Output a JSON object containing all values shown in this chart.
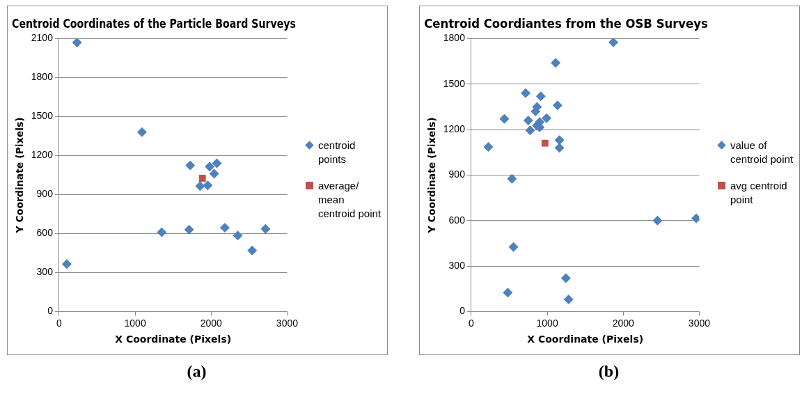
{
  "chart_data": [
    {
      "type": "scatter",
      "title": "Centroid Coordinates of the Particle Board Surveys",
      "xlabel": "X Coordinate (Pixels)",
      "ylabel": "Y Coordinate (Pixels)",
      "xlim": [
        0,
        3000
      ],
      "xticks": [
        0,
        1000,
        2000,
        3000
      ],
      "ylim": [
        0,
        2100
      ],
      "yticks": [
        0,
        300,
        600,
        900,
        1200,
        1500,
        1800,
        2100
      ],
      "grid": "y",
      "legend": "right",
      "annotations": [
        "(a)"
      ],
      "series": [
        {
          "name": "centroid points",
          "color": "#4f81bd",
          "marker": "diamond",
          "x": [
            235,
            1090,
            1725,
            1980,
            2075,
            2040,
            1855,
            1955,
            1350,
            1710,
            2180,
            2350,
            2540,
            2715,
            100
          ],
          "values": [
            2070,
            1380,
            1125,
            1115,
            1140,
            1060,
            965,
            970,
            610,
            630,
            645,
            585,
            470,
            635,
            365
          ]
        },
        {
          "name": "average/ mean centroid point",
          "color": "#c0504d",
          "marker": "square",
          "x": [
            1885
          ],
          "values": [
            1025
          ]
        }
      ]
    },
    {
      "type": "scatter",
      "title": "Centroid Coordiantes from the OSB Surveys",
      "xlabel": "X Coordinate (Pixels)",
      "ylabel": "Y Coordinate (Pixels)",
      "xlim": [
        0,
        3000
      ],
      "xticks": [
        0,
        1000,
        2000,
        3000
      ],
      "ylim": [
        0,
        1800
      ],
      "yticks": [
        0,
        300,
        600,
        900,
        1200,
        1500,
        1800
      ],
      "grid": "y",
      "legend": "right",
      "annotations": [
        "(b)"
      ],
      "series": [
        {
          "name": "value of centroid point",
          "color": "#4f81bd",
          "marker": "diamond",
          "x": [
            1870,
            1110,
            715,
            915,
            1135,
            865,
            845,
            435,
            750,
            990,
            900,
            865,
            775,
            900,
            1160,
            1160,
            225,
            535,
            2450,
            555,
            1245,
            480,
            1280,
            2960
          ],
          "values": [
            1775,
            1640,
            1440,
            1420,
            1360,
            1350,
            1320,
            1270,
            1260,
            1275,
            1250,
            1225,
            1195,
            1215,
            1130,
            1080,
            1085,
            875,
            600,
            425,
            220,
            125,
            80,
            615
          ]
        },
        {
          "name": "avg centroid point",
          "color": "#c0504d",
          "marker": "square",
          "x": [
            970
          ],
          "values": [
            1110
          ]
        }
      ]
    }
  ]
}
